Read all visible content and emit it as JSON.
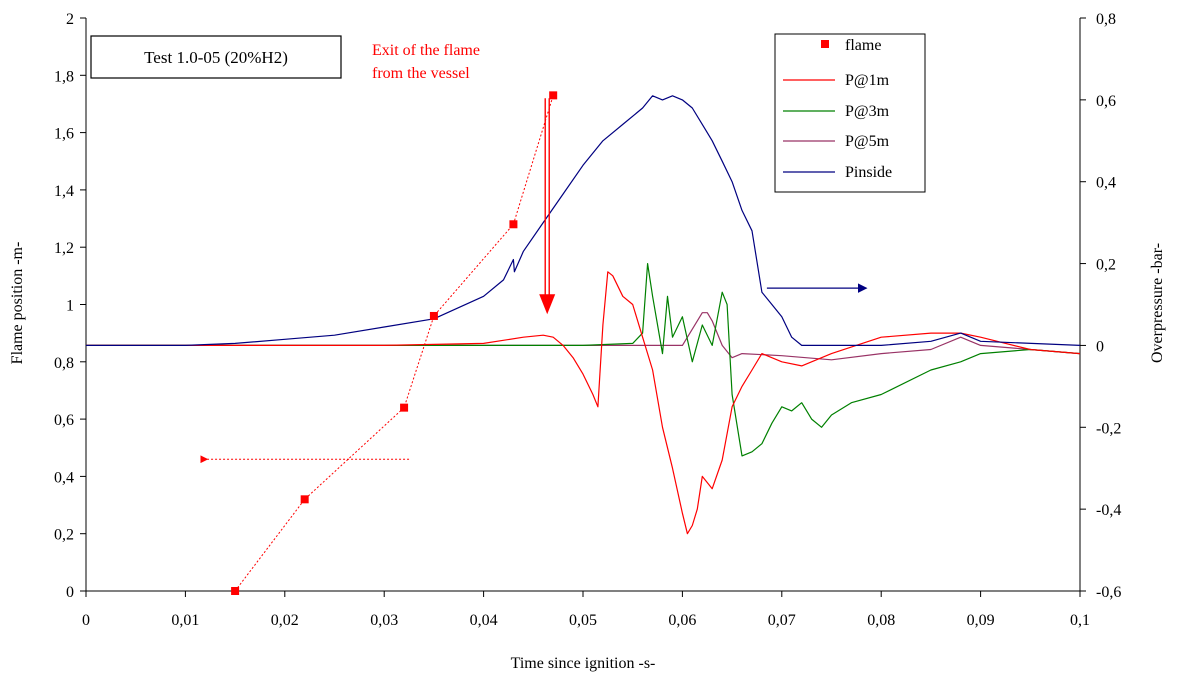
{
  "chart_data": {
    "type": "line",
    "x_label": "Time since ignition -s-",
    "y_left_label": "Flame position -m-",
    "y_right_label": "Overpressure -bar-",
    "x_range": [
      0,
      0.1
    ],
    "y_left_range": [
      0,
      2
    ],
    "y_right_range": [
      -0.6,
      0.8
    ],
    "x_ticks": [
      "0",
      "0,01",
      "0,02",
      "0,03",
      "0,04",
      "0,05",
      "0,06",
      "0,07",
      "0,08",
      "0,09",
      "0,1"
    ],
    "y_left_ticks": [
      "0",
      "0,2",
      "0,4",
      "0,6",
      "0,8",
      "1",
      "1,2",
      "1,4",
      "1,6",
      "1,8",
      "2"
    ],
    "y_right_ticks": [
      "-0,6",
      "-0,4",
      "-0,2",
      "0",
      "0,2",
      "0,4",
      "0,6",
      "0,8"
    ],
    "grid": false,
    "legend_position": "top-right",
    "test_box_label": "Test 1.0-05 (20%H2)",
    "annotation_line1": "Exit of the flame",
    "annotation_line2": "from the vessel",
    "colors": {
      "flame": "#ff0000",
      "p1": "#ff0000",
      "p3": "#008000",
      "p5": "#993366",
      "pinside": "#000080"
    },
    "series": [
      {
        "name": "flame",
        "axis": "left",
        "style": "markers",
        "x": [
          0.015,
          0.022,
          0.032,
          0.035,
          0.043,
          0.047
        ],
        "y": [
          0.0,
          0.32,
          0.64,
          0.96,
          1.28,
          1.73
        ]
      },
      {
        "name": "P@1m",
        "axis": "right",
        "x": [
          0,
          0.03,
          0.04,
          0.044,
          0.046,
          0.047,
          0.048,
          0.049,
          0.05,
          0.051,
          0.0515,
          0.052,
          0.0525,
          0.053,
          0.054,
          0.055,
          0.056,
          0.057,
          0.058,
          0.059,
          0.06,
          0.0605,
          0.061,
          0.0615,
          0.062,
          0.063,
          0.064,
          0.065,
          0.066,
          0.067,
          0.068,
          0.07,
          0.072,
          0.075,
          0.08,
          0.085,
          0.088,
          0.09,
          0.095,
          0.1
        ],
        "y": [
          0,
          0,
          0.005,
          0.02,
          0.025,
          0.02,
          0,
          -0.03,
          -0.07,
          -0.12,
          -0.15,
          0.05,
          0.18,
          0.17,
          0.12,
          0.1,
          0.02,
          -0.06,
          -0.2,
          -0.3,
          -0.41,
          -0.46,
          -0.44,
          -0.4,
          -0.32,
          -0.35,
          -0.28,
          -0.15,
          -0.1,
          -0.06,
          -0.02,
          -0.04,
          -0.05,
          -0.02,
          0.02,
          0.03,
          0.03,
          0.02,
          -0.01,
          -0.02
        ]
      },
      {
        "name": "P@3m",
        "axis": "right",
        "x": [
          0,
          0.05,
          0.055,
          0.056,
          0.0565,
          0.057,
          0.058,
          0.0585,
          0.059,
          0.06,
          0.061,
          0.062,
          0.063,
          0.064,
          0.0645,
          0.065,
          0.066,
          0.067,
          0.068,
          0.069,
          0.07,
          0.071,
          0.072,
          0.073,
          0.074,
          0.075,
          0.077,
          0.08,
          0.085,
          0.088,
          0.09,
          0.095,
          0.1
        ],
        "y": [
          0,
          0,
          0.005,
          0.03,
          0.2,
          0.12,
          -0.02,
          0.12,
          0.02,
          0.07,
          -0.04,
          0.05,
          0.0,
          0.13,
          0.1,
          -0.12,
          -0.27,
          -0.26,
          -0.24,
          -0.19,
          -0.15,
          -0.16,
          -0.14,
          -0.18,
          -0.2,
          -0.17,
          -0.14,
          -0.12,
          -0.06,
          -0.04,
          -0.02,
          -0.01,
          -0.02
        ]
      },
      {
        "name": "P@5m",
        "axis": "right",
        "x": [
          0,
          0.06,
          0.0615,
          0.062,
          0.0625,
          0.063,
          0.064,
          0.065,
          0.066,
          0.07,
          0.075,
          0.08,
          0.085,
          0.088,
          0.09,
          0.095,
          0.1
        ],
        "y": [
          0,
          0,
          0.06,
          0.08,
          0.08,
          0.06,
          0.0,
          -0.03,
          -0.02,
          -0.025,
          -0.035,
          -0.02,
          -0.01,
          0.02,
          0.0,
          -0.01,
          -0.02
        ]
      },
      {
        "name": "Pinside",
        "axis": "right",
        "x": [
          0,
          0.01,
          0.015,
          0.02,
          0.025,
          0.03,
          0.035,
          0.04,
          0.042,
          0.043,
          0.0431,
          0.044,
          0.046,
          0.048,
          0.05,
          0.052,
          0.054,
          0.056,
          0.057,
          0.058,
          0.059,
          0.06,
          0.061,
          0.062,
          0.063,
          0.064,
          0.065,
          0.066,
          0.067,
          0.068,
          0.069,
          0.07,
          0.071,
          0.072,
          0.08,
          0.085,
          0.088,
          0.089,
          0.09,
          0.1
        ],
        "y": [
          0,
          0,
          0.005,
          0.015,
          0.025,
          0.045,
          0.065,
          0.12,
          0.16,
          0.21,
          0.18,
          0.23,
          0.3,
          0.37,
          0.44,
          0.5,
          0.54,
          0.58,
          0.61,
          0.6,
          0.61,
          0.6,
          0.58,
          0.54,
          0.5,
          0.45,
          0.4,
          0.33,
          0.28,
          0.13,
          0.1,
          0.07,
          0.02,
          0.0,
          0.0,
          0.01,
          0.03,
          0.02,
          0.01,
          0.0
        ]
      }
    ]
  }
}
